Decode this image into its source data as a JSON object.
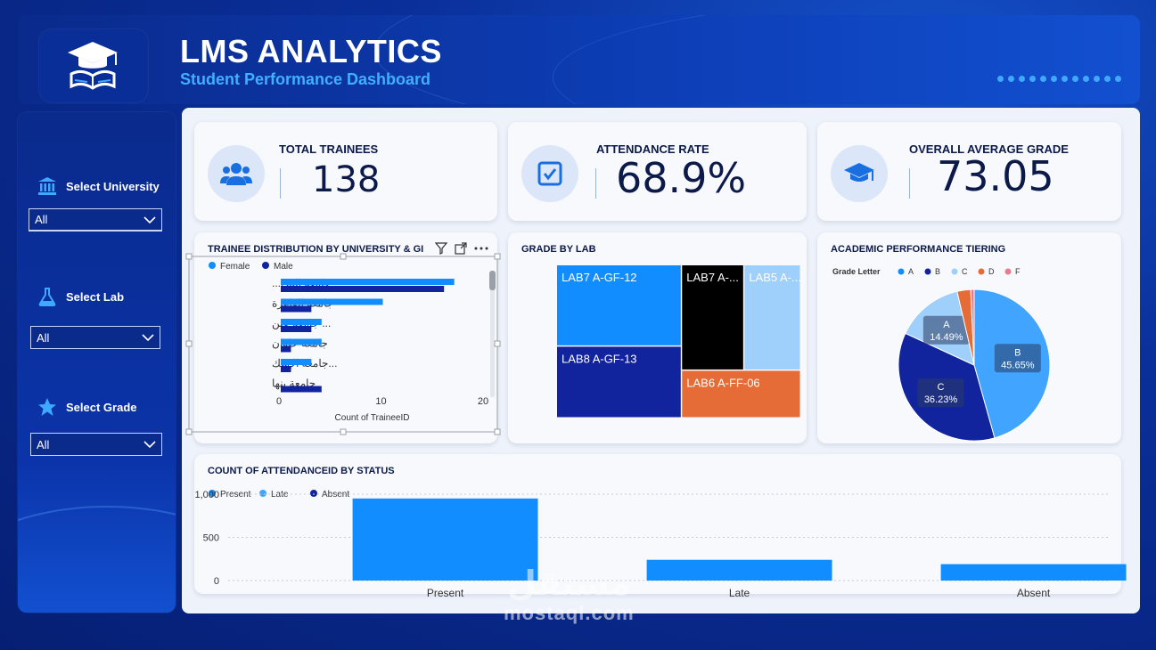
{
  "header": {
    "title": "LMS ANALYTICS",
    "subtitle": "Student Performance Dashboard"
  },
  "sidebar": {
    "slicers": [
      {
        "label": "Select University",
        "value": "All",
        "icon": "university-icon"
      },
      {
        "label": "Select Lab",
        "value": "All",
        "icon": "flask-icon"
      },
      {
        "label": "Select Grade",
        "value": "All",
        "icon": "star-icon"
      }
    ]
  },
  "kpis": {
    "trainees": {
      "label": "TOTAL TRAINEES",
      "value": "138",
      "icon": "users-icon"
    },
    "attendance": {
      "label": "ATTENDANCE RATE",
      "value": "68.9%",
      "icon": "checkbox-icon"
    },
    "grade": {
      "label": "OVERALL AVERAGE GRADE",
      "value": "73.05",
      "icon": "graduation-cap-icon"
    }
  },
  "colors": {
    "blue": "#118dff",
    "navy": "#12239e",
    "lightblue": "#9fcffb",
    "orange": "#e66c37",
    "pink": "#e77c8e",
    "black": "#000000"
  },
  "chart_data": [
    {
      "type": "bar",
      "title": "TRAINEE DISTRIBUTION BY UNIVERSITY & GI",
      "categories": [
        "جامعة المن...",
        "جامعة القاهرة",
        "... جامعة عين",
        "جامعة حلوان",
        "...جامعة الإسك",
        "جامعة بنها"
      ],
      "series": [
        {
          "name": "Female",
          "values": [
            17,
            10,
            4,
            4,
            3,
            0
          ]
        },
        {
          "name": "Male",
          "values": [
            16,
            3,
            3,
            1,
            1,
            4
          ]
        }
      ],
      "xlabel": "Count of TraineeID",
      "xticks": [
        "0",
        "10",
        "20"
      ],
      "xlim": [
        0,
        20
      ]
    },
    {
      "type": "treemap",
      "title": "GRADE BY LAB",
      "items": [
        {
          "label": "LAB7 A-GF-12",
          "value": 34,
          "color": "#118dff"
        },
        {
          "label": "LAB8 A-GF-13",
          "value": 30,
          "color": "#12239e"
        },
        {
          "label": "LAB7 A-...",
          "value": 22,
          "color": "#000000"
        },
        {
          "label": "LAB5 A-...",
          "value": 20,
          "color": "#9fcffb"
        },
        {
          "label": "LAB6 A-FF-06",
          "value": 19,
          "color": "#e66c37"
        }
      ]
    },
    {
      "type": "pie",
      "title": "ACADEMIC PERFORMANCE TIERING",
      "legend_title": "Grade Letter",
      "legend": [
        "A",
        "B",
        "C",
        "D",
        "F"
      ],
      "slices": [
        {
          "label": "B",
          "value": 45.65,
          "display": "45.65%",
          "color": "#41a4ff"
        },
        {
          "label": "C",
          "value": 36.23,
          "display": "36.23%",
          "color": "#12239e"
        },
        {
          "label": "A",
          "value": 14.49,
          "display": "14.49%",
          "color": "#9fcffb"
        },
        {
          "label": "D",
          "value": 2.9,
          "color": "#e66c37"
        },
        {
          "label": "F",
          "value": 0.73,
          "color": "#e77c8e"
        }
      ]
    },
    {
      "type": "bar",
      "title": "COUNT OF ATTENDANCEID BY STATUS",
      "categories": [
        "Present",
        "Late",
        "Absent"
      ],
      "legend": [
        "Present",
        "Late",
        "Absent"
      ],
      "values": [
        950,
        240,
        190
      ],
      "yticks": [
        "0",
        "500",
        "1,000"
      ],
      "ylim": [
        0,
        1000
      ]
    }
  ],
  "watermark": {
    "arabic": "مستقل",
    "latin": "mostaql.com"
  }
}
